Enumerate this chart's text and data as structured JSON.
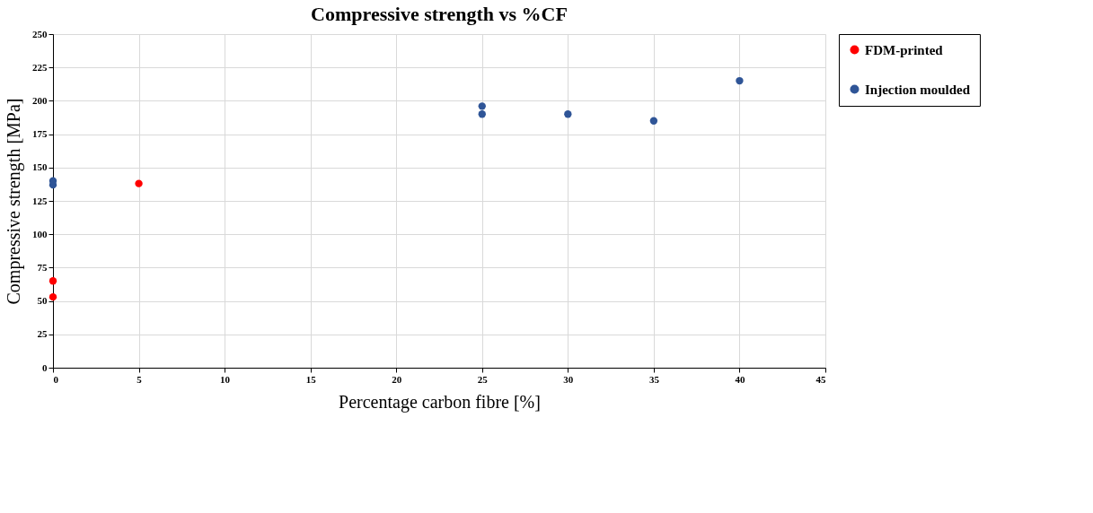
{
  "chart_data": {
    "type": "scatter",
    "title": "Compressive strength vs %CF",
    "xlabel": "Percentage carbon fibre [%]",
    "ylabel": "Compressive strength [MPa]",
    "series": [
      {
        "name": "FDM-printed",
        "color": "#ff0000",
        "x": [
          0,
          0,
          5
        ],
        "values": [
          53,
          65,
          138
        ]
      },
      {
        "name": "Injection moulded",
        "color": "#2f5597",
        "x": [
          0,
          0,
          25,
          25,
          30,
          35,
          40
        ],
        "values": [
          137,
          140,
          190,
          196,
          190,
          185,
          215
        ]
      }
    ],
    "xlim": [
      0,
      45
    ],
    "xticks": [
      0,
      5,
      10,
      15,
      20,
      25,
      30,
      35,
      40,
      45
    ],
    "ylim": [
      0,
      250
    ],
    "yticks": [
      0,
      25,
      50,
      75,
      100,
      125,
      150,
      175,
      200,
      225,
      250
    ],
    "grid": true,
    "legend": "right",
    "marker": "circle"
  }
}
